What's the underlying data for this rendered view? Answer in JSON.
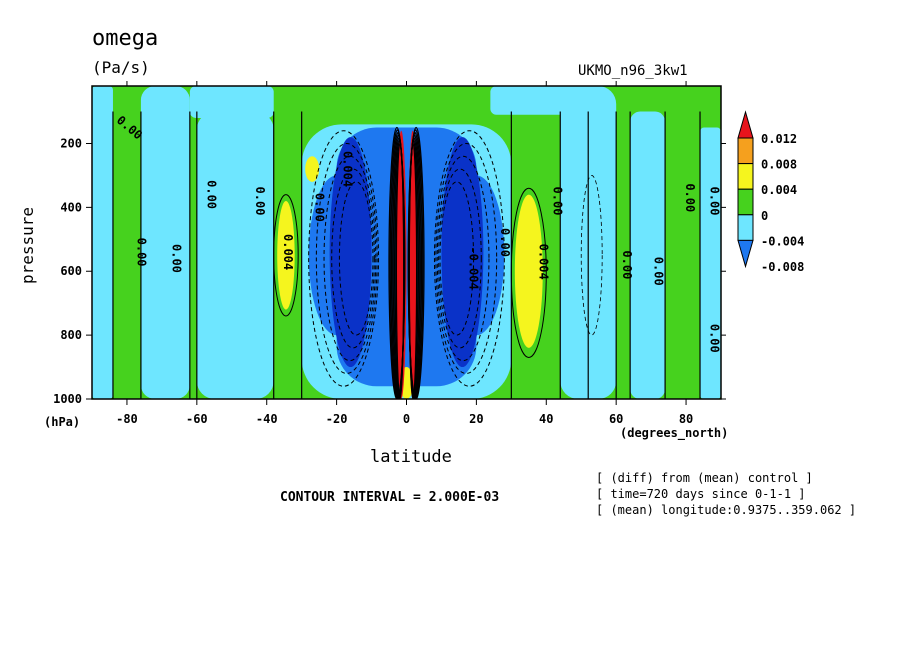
{
  "chart_data": {
    "type": "heatmap",
    "title": "omega",
    "units": "(Pa/s)",
    "model_label": "UKMO_n96_3kw1",
    "xlabel": "latitude",
    "ylabel": "pressure",
    "y_unit_label": "(hPa)",
    "x_unit_label": "(degrees_north)",
    "xlim": [
      -90,
      90
    ],
    "ylim": [
      1000,
      20
    ],
    "x_ticks": [
      -80,
      -60,
      -40,
      -20,
      0,
      20,
      40,
      60,
      80
    ],
    "x_tick_labels": [
      "-80",
      "-60",
      "-40",
      "-20",
      "0",
      "20",
      "40",
      "60",
      "80"
    ],
    "y_ticks": [
      200,
      400,
      600,
      800,
      1000
    ],
    "y_tick_labels": [
      "200",
      "400",
      "600",
      "800",
      "1000"
    ],
    "contour_interval_text": "CONTOUR INTERVAL = 2.000E-03",
    "info_lines": [
      "[ (diff) from (mean) control ]",
      "[ time=720 days since 0-1-1 ]",
      "[ (mean) longitude:0.9375..359.062 ]"
    ],
    "colorbar": {
      "labels": [
        "0.012",
        "0.008",
        "0.004",
        "0",
        "-0.004",
        "-0.008"
      ],
      "colors": [
        "#e8141c",
        "#f5a01e",
        "#f5f51e",
        "#46d21e",
        "#6ee6ff",
        "#1e78f0"
      ],
      "extra_colors": [
        "#0a32c8"
      ]
    },
    "contour_labels": [
      {
        "text": "0.00",
        "x": -80,
        "p": 160
      },
      {
        "text": "0.00",
        "x": -77,
        "p": 540
      },
      {
        "text": "0.00",
        "x": -67,
        "p": 560
      },
      {
        "text": "0.00",
        "x": -57,
        "p": 360
      },
      {
        "text": "0.00",
        "x": -43,
        "p": 380
      },
      {
        "text": "0.004",
        "x": -35,
        "p": 540
      },
      {
        "text": "0.00",
        "x": -26,
        "p": 400
      },
      {
        "text": "0.004",
        "x": -18,
        "p": 280
      },
      {
        "text": "-0.004",
        "x": 18,
        "p": 590
      },
      {
        "text": "0.00",
        "x": 27,
        "p": 510
      },
      {
        "text": "0.004",
        "x": 38,
        "p": 570
      },
      {
        "text": "0.00",
        "x": 42,
        "p": 380
      },
      {
        "text": "0.00",
        "x": 62,
        "p": 580
      },
      {
        "text": "0.00",
        "x": 71,
        "p": 600
      },
      {
        "text": "0.00",
        "x": 80,
        "p": 370
      },
      {
        "text": "0.00",
        "x": 87,
        "p": 380
      },
      {
        "text": "0.00",
        "x": 87,
        "p": 810
      }
    ]
  }
}
